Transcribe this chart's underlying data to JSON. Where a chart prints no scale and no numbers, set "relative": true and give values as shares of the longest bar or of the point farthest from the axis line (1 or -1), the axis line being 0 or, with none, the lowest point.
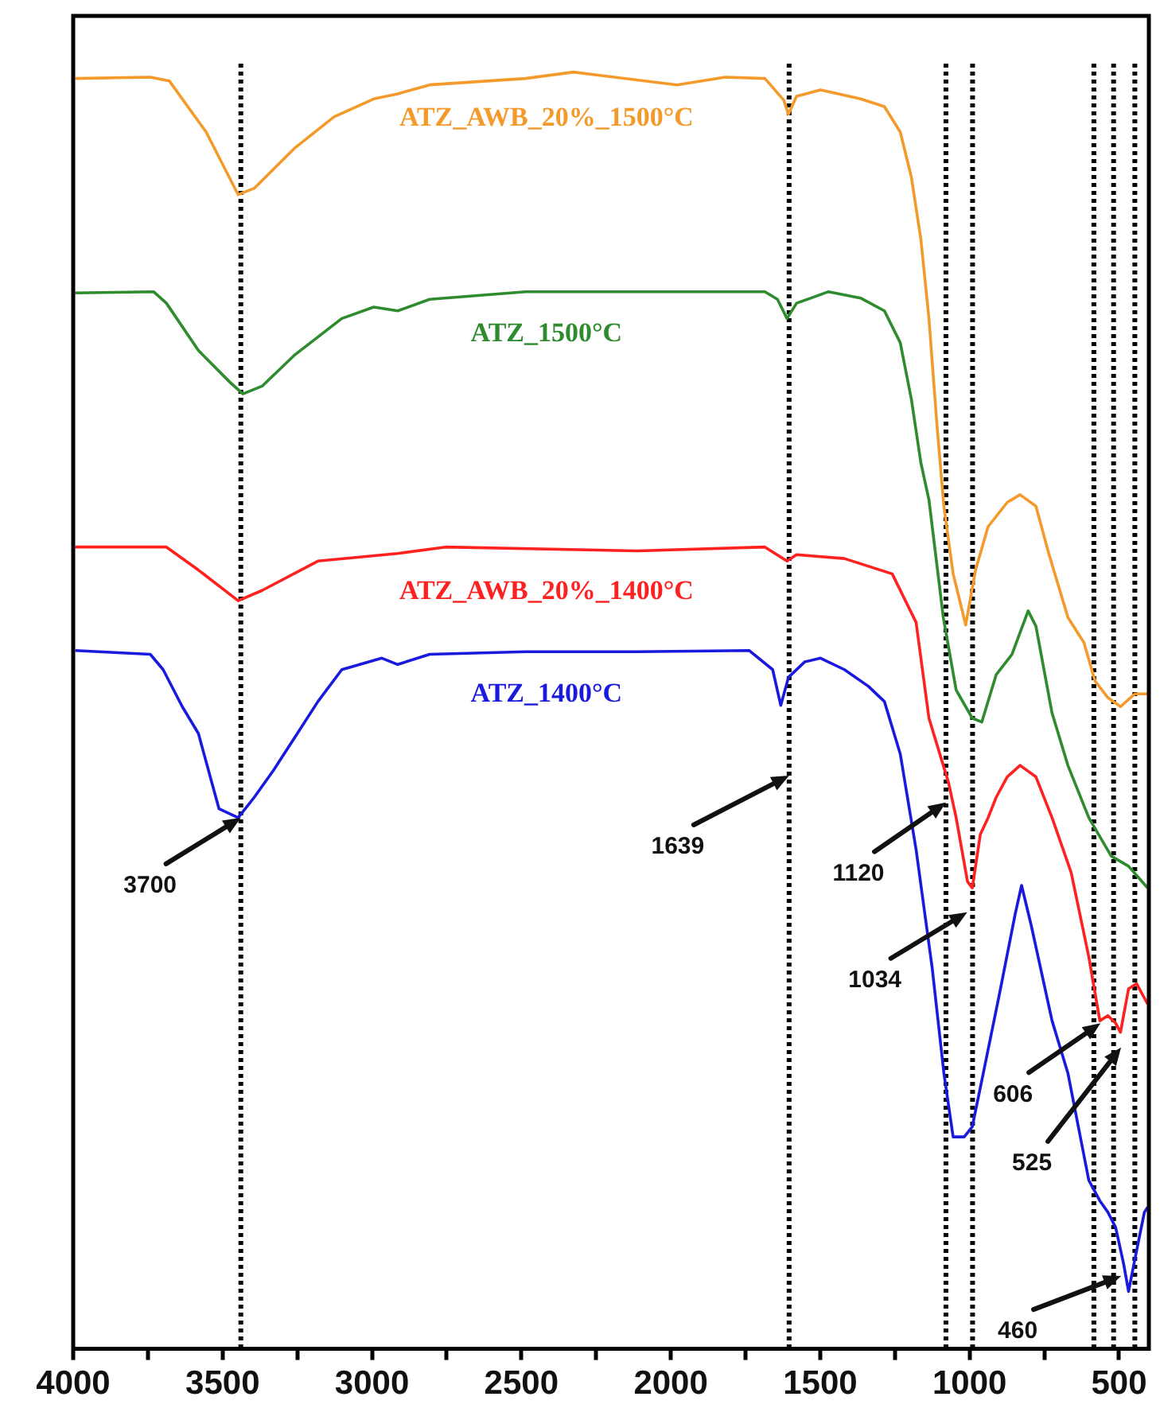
{
  "chart_data": {
    "type": "line",
    "relative": true,
    "grid": false,
    "legend": false,
    "marker": "none",
    "line_style": "solid",
    "tick_labels": "x",
    "xlim": [
      4000,
      400
    ],
    "xticks": [
      4000,
      {
        "value": 3750,
        "label": null
      },
      3500,
      {
        "value": 3250,
        "label": null
      },
      3000,
      {
        "value": 2750,
        "label": null
      },
      2500,
      {
        "value": 2250,
        "label": null
      },
      2000,
      {
        "value": 1750,
        "label": null
      },
      1500,
      {
        "value": 1250,
        "label": null
      },
      1000,
      {
        "value": 750,
        "label": null
      },
      500
    ],
    "series": [
      {
        "name": "ATZ_AWB_20%_1500°C",
        "color": "#f39a2b",
        "x": [
          3993,
          3742,
          3678,
          3555,
          3448,
          3394,
          3261,
          3127,
          2994,
          2914,
          2807,
          2486,
          2326,
          1979,
          1818,
          1685,
          1622,
          1606,
          1579,
          1499,
          1365,
          1285,
          1232,
          1195,
          1163,
          1136,
          1109,
          1086,
          1055,
          1013,
          980,
          938,
          874,
          831,
          778,
          735,
          671,
          617,
          580,
          537,
          495,
          447,
          404
        ],
        "values": [
          0.995,
          0.996,
          0.993,
          0.953,
          0.904,
          0.909,
          0.94,
          0.965,
          0.979,
          0.983,
          0.99,
          0.995,
          1.0,
          0.99,
          0.996,
          0.995,
          0.978,
          0.967,
          0.981,
          0.986,
          0.979,
          0.973,
          0.953,
          0.918,
          0.869,
          0.807,
          0.723,
          0.66,
          0.607,
          0.567,
          0.61,
          0.644,
          0.663,
          0.669,
          0.66,
          0.623,
          0.573,
          0.553,
          0.523,
          0.51,
          0.503,
          0.513,
          0.513
        ]
      },
      {
        "name": "ATZ_1500°C",
        "color": "#2e8b2e",
        "x": [
          3993,
          3731,
          3688,
          3581,
          3475,
          3432,
          3368,
          3261,
          3101,
          2994,
          2914,
          2807,
          2486,
          2112,
          1685,
          1643,
          1611,
          1579,
          1472,
          1365,
          1285,
          1232,
          1195,
          1163,
          1136,
          1088,
          1045,
          991,
          959,
          911,
          858,
          804,
          778,
          724,
          671,
          601,
          526,
          468,
          404
        ],
        "values": [
          0.827,
          0.828,
          0.819,
          0.782,
          0.757,
          0.748,
          0.754,
          0.778,
          0.807,
          0.816,
          0.813,
          0.822,
          0.828,
          0.828,
          0.828,
          0.822,
          0.807,
          0.819,
          0.828,
          0.823,
          0.813,
          0.788,
          0.744,
          0.694,
          0.665,
          0.573,
          0.516,
          0.494,
          0.491,
          0.528,
          0.544,
          0.578,
          0.566,
          0.498,
          0.457,
          0.416,
          0.386,
          0.378,
          0.361
        ]
      },
      {
        "name": "ATZ_AWB_20%_1400°C",
        "color": "#ff2020",
        "x": [
          3993,
          3688,
          3581,
          3448,
          3368,
          3181,
          2914,
          2754,
          2112,
          1685,
          1611,
          1579,
          1419,
          1259,
          1179,
          1136,
          1088,
          1071,
          1045,
          1007,
          991,
          964,
          938,
          911,
          874,
          831,
          778,
          724,
          660,
          601,
          564,
          537,
          511,
          495,
          468,
          441,
          404
        ],
        "values": [
          0.628,
          0.628,
          0.61,
          0.586,
          0.594,
          0.617,
          0.623,
          0.628,
          0.625,
          0.628,
          0.617,
          0.622,
          0.619,
          0.607,
          0.569,
          0.494,
          0.457,
          0.444,
          0.416,
          0.366,
          0.361,
          0.403,
          0.416,
          0.432,
          0.448,
          0.457,
          0.448,
          0.416,
          0.373,
          0.307,
          0.257,
          0.261,
          0.255,
          0.248,
          0.282,
          0.286,
          0.27
        ]
      },
      {
        "name": "ATZ_1400°C",
        "color": "#1a1adf",
        "x": [
          3993,
          3742,
          3699,
          3635,
          3581,
          3512,
          3448,
          3394,
          3330,
          3261,
          3181,
          3101,
          2967,
          2914,
          2807,
          2486,
          2112,
          1738,
          1659,
          1632,
          1606,
          1552,
          1499,
          1419,
          1339,
          1285,
          1232,
          1179,
          1125,
          1086,
          1055,
          1018,
          991,
          954,
          900,
          847,
          826,
          794,
          724,
          671,
          601,
          564,
          537,
          511,
          484,
          468,
          447,
          415,
          404
        ],
        "values": [
          0.547,
          0.544,
          0.532,
          0.503,
          0.482,
          0.423,
          0.416,
          0.432,
          0.453,
          0.478,
          0.507,
          0.532,
          0.541,
          0.536,
          0.544,
          0.546,
          0.546,
          0.547,
          0.532,
          0.504,
          0.526,
          0.538,
          0.541,
          0.532,
          0.519,
          0.507,
          0.466,
          0.391,
          0.298,
          0.216,
          0.166,
          0.166,
          0.174,
          0.216,
          0.278,
          0.341,
          0.363,
          0.332,
          0.257,
          0.216,
          0.132,
          0.116,
          0.107,
          0.095,
          0.066,
          0.045,
          0.07,
          0.107,
          0.111
        ]
      }
    ],
    "ref_lines": [
      {
        "axis": "x",
        "value": 3439,
        "color": "#000000",
        "line_style": "dotted"
      },
      {
        "axis": "x",
        "value": 1604,
        "color": "#000000",
        "line_style": "dotted"
      },
      {
        "axis": "x",
        "value": 1079,
        "color": "#000000",
        "line_style": "dotted"
      },
      {
        "axis": "x",
        "value": 990,
        "color": "#000000",
        "line_style": "dotted"
      },
      {
        "axis": "x",
        "value": 584,
        "color": "#000000",
        "line_style": "dotted"
      },
      {
        "axis": "x",
        "value": 518,
        "color": "#000000",
        "line_style": "dotted"
      },
      {
        "axis": "x",
        "value": 447,
        "color": "#000000",
        "line_style": "dotted"
      }
    ],
    "annotations": [
      {
        "text": "3700",
        "x": 3439,
        "y": 0.416
      },
      {
        "text": "1639",
        "x": 1604,
        "y": 0.449
      },
      {
        "text": "1120",
        "x": 1079,
        "y": 0.428
      },
      {
        "text": "1034",
        "x": 1008,
        "y": 0.342
      },
      {
        "text": "606",
        "x": 562,
        "y": 0.255
      },
      {
        "text": "525",
        "x": 493,
        "y": 0.236
      },
      {
        "text": "460",
        "x": 493,
        "y": 0.057
      }
    ]
  }
}
